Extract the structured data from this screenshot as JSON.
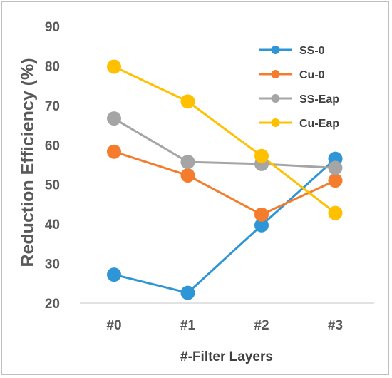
{
  "chart_data": {
    "type": "line",
    "categories": [
      "#0",
      "#1",
      "#2",
      "#3"
    ],
    "xlabel": "#-Filter Layers",
    "ylabel": "Reduction Efficiency (%)",
    "ylim": [
      20,
      90
    ],
    "yticks": [
      20,
      30,
      40,
      50,
      60,
      70,
      80,
      90
    ],
    "grid": false,
    "legend_position": "top-right",
    "series": [
      {
        "name": "SS-0",
        "color": "#2e96d6",
        "values": [
          27.2,
          22.6,
          39.7,
          56.5
        ]
      },
      {
        "name": "Cu-0",
        "color": "#f47c2c",
        "values": [
          58.3,
          52.3,
          42.4,
          51.0
        ]
      },
      {
        "name": "SS-Eap",
        "color": "#a5a5a5",
        "values": [
          66.7,
          55.7,
          55.2,
          54.2
        ]
      },
      {
        "name": "Cu-Eap",
        "color": "#ffc000",
        "values": [
          79.8,
          71.0,
          57.2,
          42.8
        ]
      }
    ]
  }
}
